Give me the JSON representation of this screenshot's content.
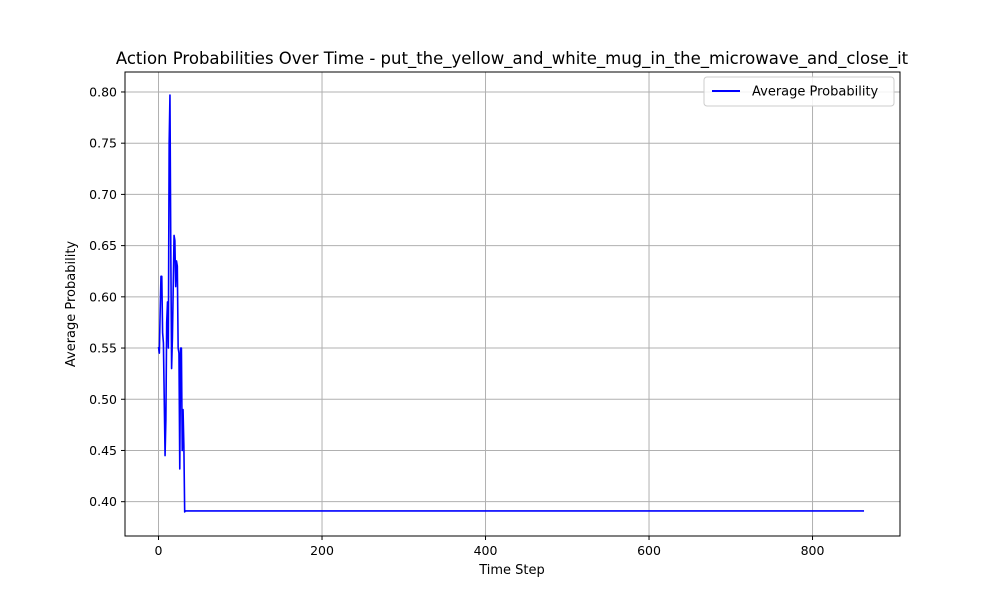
{
  "chart_data": {
    "type": "line",
    "title": "Action Probabilities Over Time - put_the_yellow_and_white_mug_in_the_microwave_and_close_it",
    "xlabel": "Time Step",
    "ylabel": "Average Probability",
    "xlim": [
      -41,
      907
    ],
    "ylim": [
      0.3665,
      0.8195
    ],
    "xticks": [
      0,
      200,
      400,
      600,
      800
    ],
    "yticks": [
      0.4,
      0.45,
      0.5,
      0.55,
      0.6,
      0.65,
      0.7,
      0.75,
      0.8
    ],
    "grid": true,
    "legend_position": "top-right",
    "series": [
      {
        "name": "Average Probability",
        "color": "#0000ff",
        "x": [
          0,
          1,
          2,
          3,
          4,
          5,
          6,
          7,
          8,
          9,
          10,
          11,
          12,
          13,
          14,
          15,
          16,
          17,
          18,
          19,
          20,
          21,
          22,
          23,
          24,
          25,
          26,
          27,
          28,
          29,
          30,
          31,
          32,
          33,
          34,
          35,
          100,
          200,
          300,
          400,
          500,
          600,
          700,
          800,
          863
        ],
        "y": [
          0.551,
          0.545,
          0.585,
          0.62,
          0.62,
          0.565,
          0.555,
          0.5,
          0.445,
          0.48,
          0.575,
          0.595,
          0.55,
          0.75,
          0.797,
          0.65,
          0.53,
          0.56,
          0.61,
          0.66,
          0.655,
          0.61,
          0.635,
          0.63,
          0.55,
          0.545,
          0.432,
          0.55,
          0.55,
          0.45,
          0.49,
          0.455,
          0.39,
          0.391,
          0.391,
          0.391,
          0.391,
          0.391,
          0.391,
          0.391,
          0.391,
          0.391,
          0.391,
          0.391,
          0.391
        ]
      }
    ]
  }
}
